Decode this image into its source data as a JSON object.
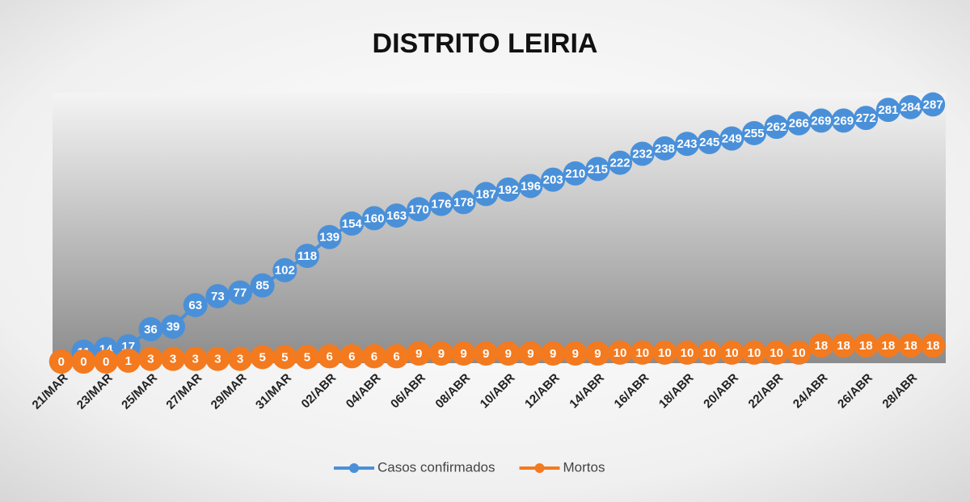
{
  "chart_data": {
    "type": "line",
    "title": "DISTRITO LEIRIA",
    "categories": [
      "21/MAR",
      null,
      "23/MAR",
      null,
      "25/MAR",
      null,
      "27/MAR",
      null,
      "29/MAR",
      null,
      "31/MAR",
      null,
      "02/ABR",
      null,
      "04/ABR",
      null,
      "06/ABR",
      null,
      "08/ABR",
      null,
      "10/ABR",
      null,
      "12/ABR",
      null,
      "14/ABR",
      null,
      "16/ABR",
      null,
      "18/ABR",
      null,
      "20/ABR",
      null,
      "22/ABR",
      null,
      "24/ABR",
      null,
      "26/ABR",
      null,
      "28/ABR",
      null
    ],
    "series": [
      {
        "name": "Casos confirmados",
        "color": "#4a90d9",
        "values": [
          0,
          11,
          14,
          17,
          36,
          39,
          63,
          73,
          77,
          85,
          102,
          118,
          139,
          154,
          160,
          163,
          170,
          176,
          178,
          187,
          192,
          196,
          203,
          210,
          215,
          222,
          232,
          238,
          243,
          245,
          249,
          255,
          262,
          266,
          269,
          269,
          272,
          281,
          284,
          287
        ]
      },
      {
        "name": "Mortos",
        "color": "#f47a1f",
        "values": [
          0,
          0,
          0,
          1,
          3,
          3,
          3,
          3,
          3,
          5,
          5,
          5,
          6,
          6,
          6,
          6,
          9,
          9,
          9,
          9,
          9,
          9,
          9,
          9,
          9,
          10,
          10,
          10,
          10,
          10,
          10,
          10,
          10,
          10,
          18,
          18,
          18,
          18,
          18,
          18
        ]
      }
    ],
    "ylim": [
      0,
      300
    ],
    "legend": "bottom"
  }
}
